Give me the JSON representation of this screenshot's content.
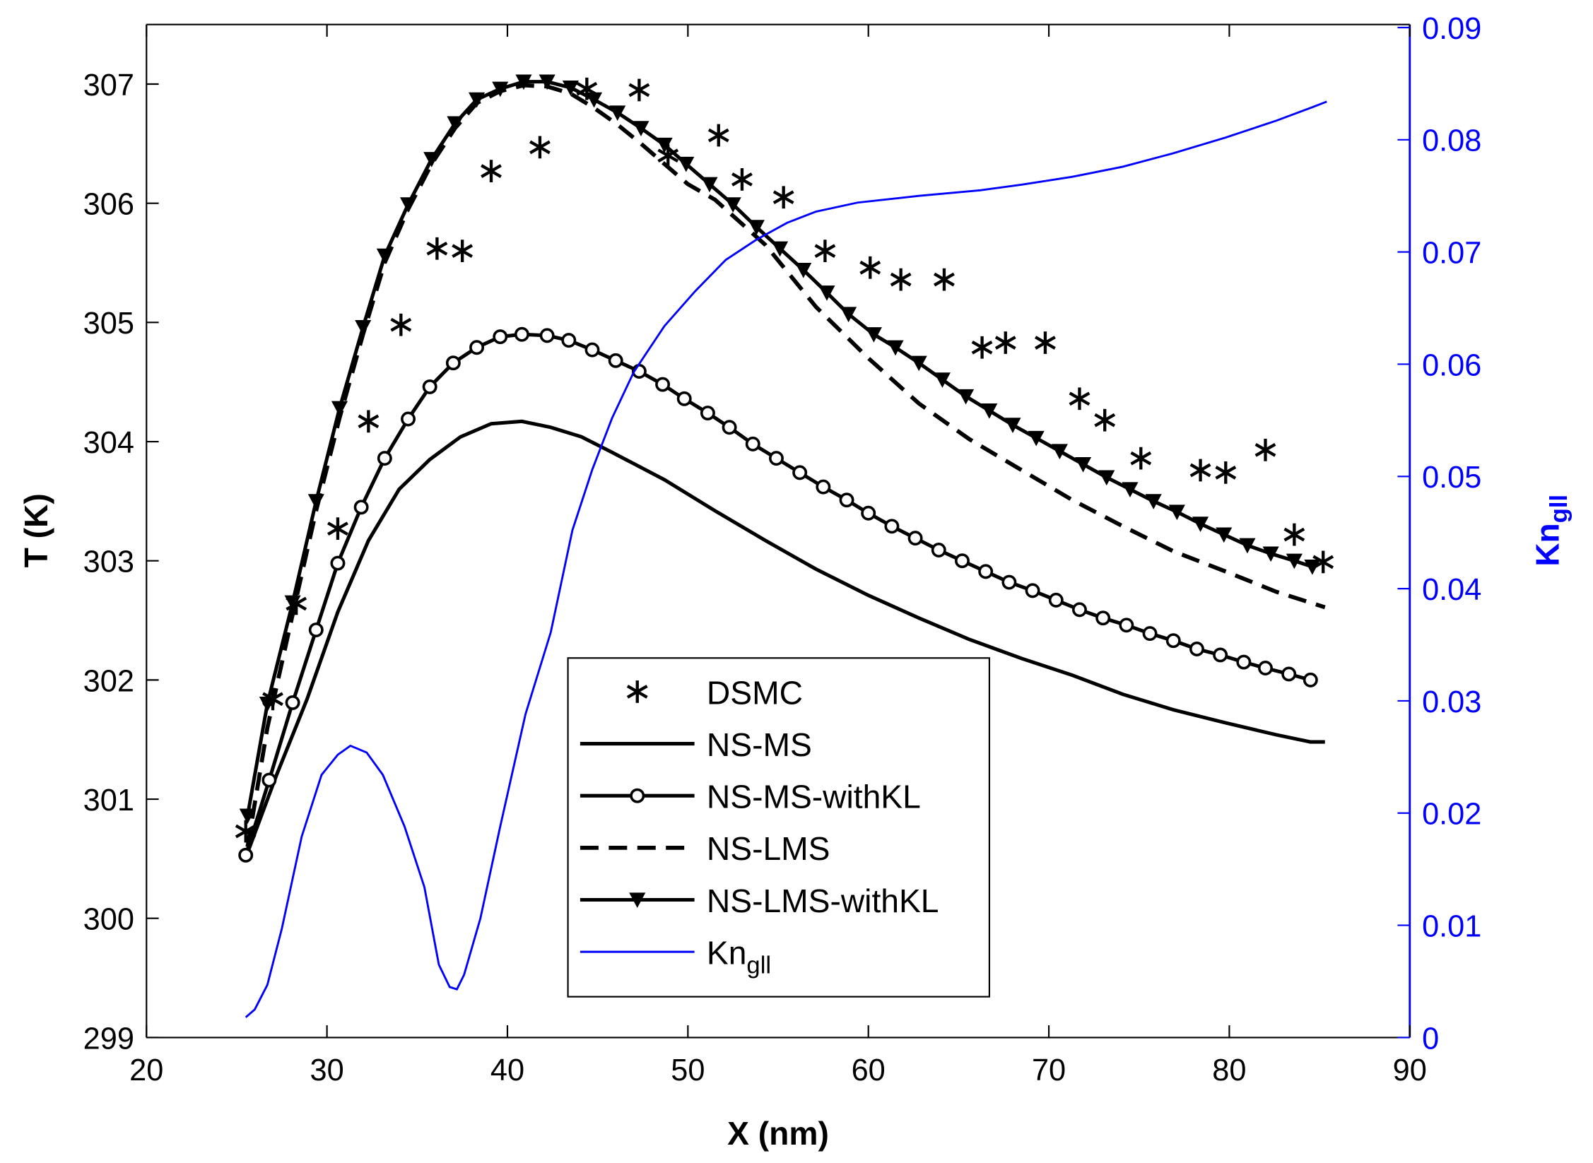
{
  "chart_data": {
    "type": "line",
    "title": "",
    "xlabel": "X (nm)",
    "ylabel": "T (K)",
    "y2label": {
      "base": "Kn",
      "sub": "gll"
    },
    "xlim": [
      20,
      90
    ],
    "ylim": [
      299,
      307.5
    ],
    "y2lim": [
      0,
      0.09
    ],
    "xticks": [
      20,
      30,
      40,
      50,
      60,
      70,
      80,
      90
    ],
    "yticks": [
      299,
      300,
      301,
      302,
      303,
      304,
      305,
      306,
      307
    ],
    "y2ticks": [
      "0",
      "0.01",
      "0.02",
      "0.03",
      "0.04",
      "0.05",
      "0.06",
      "0.07",
      "0.08",
      "0.09"
    ],
    "grid": false,
    "legend_position": "bottom-center",
    "colors": {
      "axis": "#000000",
      "kn": "#0000ff"
    },
    "series": [
      {
        "name": "DSMC",
        "style": "asterisk",
        "axis": "left",
        "x": [
          25.5,
          27.0,
          28.3,
          30.6,
          32.3,
          34.1,
          36.1,
          37.5,
          39.1,
          41.8,
          44.4,
          47.3,
          48.9,
          51.7,
          53.0,
          55.3,
          57.6,
          60.1,
          61.8,
          64.2,
          66.3,
          67.6,
          69.8,
          71.7,
          73.1,
          75.1,
          78.4,
          79.8,
          82.0,
          83.6,
          85.2
        ],
        "y": [
          300.73,
          301.84,
          302.64,
          303.27,
          304.17,
          304.98,
          305.62,
          305.6,
          306.27,
          306.47,
          306.96,
          306.95,
          306.4,
          306.57,
          306.2,
          306.05,
          305.6,
          305.46,
          305.36,
          305.36,
          304.79,
          304.83,
          304.83,
          304.36,
          304.18,
          303.86,
          303.76,
          303.74,
          303.93,
          303.22,
          302.99
        ]
      },
      {
        "name": "NS-MS",
        "style": "solid",
        "axis": "left",
        "x": [
          25.5,
          27.2,
          28.9,
          30.6,
          32.3,
          34.0,
          35.7,
          37.4,
          39.1,
          40.8,
          42.4,
          44.1,
          45.8,
          48.7,
          51.5,
          54.3,
          57.1,
          60.0,
          62.8,
          65.6,
          68.5,
          71.3,
          74.1,
          76.9,
          79.8,
          82.6,
          84.5,
          85.3
        ],
        "y": [
          300.51,
          301.2,
          301.84,
          302.57,
          303.17,
          303.6,
          303.85,
          304.04,
          304.15,
          304.17,
          304.12,
          304.04,
          303.91,
          303.68,
          303.42,
          303.17,
          302.93,
          302.71,
          302.52,
          302.34,
          302.18,
          302.04,
          301.88,
          301.75,
          301.64,
          301.54,
          301.48,
          301.48
        ]
      },
      {
        "name": "NS-MS-withKL",
        "style": "solid-circle",
        "axis": "left",
        "x": [
          25.5,
          26.8,
          28.1,
          29.4,
          30.6,
          31.9,
          33.2,
          34.5,
          35.7,
          37.0,
          38.3,
          39.6,
          40.8,
          42.2,
          43.4,
          44.7,
          46.0,
          47.3,
          48.6,
          49.8,
          51.1,
          52.3,
          53.6,
          54.9,
          56.2,
          57.5,
          58.8,
          60.0,
          61.3,
          62.6,
          63.9,
          65.2,
          66.5,
          67.8,
          69.1,
          70.4,
          71.7,
          73.0,
          74.3,
          75.6,
          76.9,
          78.2,
          79.5,
          80.8,
          82.0,
          83.3,
          84.5
        ],
        "y": [
          300.53,
          301.16,
          301.81,
          302.42,
          302.98,
          303.45,
          303.86,
          304.19,
          304.46,
          304.66,
          304.79,
          304.88,
          304.9,
          304.89,
          304.85,
          304.77,
          304.68,
          304.59,
          304.48,
          304.36,
          304.24,
          304.12,
          303.98,
          303.86,
          303.74,
          303.62,
          303.51,
          303.4,
          303.29,
          303.19,
          303.09,
          303.0,
          302.91,
          302.82,
          302.75,
          302.67,
          302.59,
          302.52,
          302.46,
          302.39,
          302.33,
          302.26,
          302.21,
          302.15,
          302.1,
          302.05,
          302.0
        ]
      },
      {
        "name": "NS-LMS",
        "style": "dashed",
        "axis": "left",
        "x": [
          25.6,
          26.7,
          28.1,
          29.4,
          30.7,
          32.0,
          33.2,
          34.5,
          35.8,
          37.1,
          38.3,
          39.6,
          40.9,
          42.2,
          43.5,
          44.8,
          46.1,
          47.4,
          48.7,
          50.0,
          51.5,
          54.3,
          57.1,
          60.0,
          62.8,
          65.6,
          68.5,
          71.3,
          74.1,
          76.9,
          79.8,
          82.6,
          85.3
        ],
        "y": [
          300.6,
          301.6,
          302.55,
          303.42,
          304.2,
          304.9,
          305.5,
          305.95,
          306.33,
          306.63,
          306.84,
          306.94,
          306.99,
          306.98,
          306.92,
          306.8,
          306.66,
          306.5,
          306.33,
          306.16,
          306.03,
          305.65,
          305.13,
          304.7,
          304.32,
          304.02,
          303.76,
          303.51,
          303.29,
          303.08,
          302.91,
          302.74,
          302.61
        ]
      },
      {
        "name": "NS-LMS-withKL",
        "style": "solid-triangle",
        "axis": "left",
        "x": [
          25.6,
          26.7,
          28.1,
          29.4,
          30.7,
          32.0,
          33.2,
          34.5,
          35.8,
          37.1,
          38.3,
          39.6,
          40.9,
          42.2,
          43.5,
          44.8,
          46.1,
          47.4,
          48.7,
          49.9,
          51.2,
          52.5,
          53.8,
          55.1,
          56.4,
          57.7,
          58.9,
          60.3,
          61.5,
          62.8,
          64.1,
          65.4,
          66.7,
          68.0,
          69.3,
          70.6,
          71.9,
          73.2,
          74.5,
          75.8,
          77.1,
          78.4,
          79.7,
          81.0,
          82.3,
          83.6,
          84.6
        ],
        "y": [
          300.86,
          301.8,
          302.65,
          303.5,
          304.28,
          304.96,
          305.56,
          305.99,
          306.37,
          306.67,
          306.87,
          306.96,
          307.02,
          307.02,
          306.97,
          306.87,
          306.76,
          306.63,
          306.49,
          306.33,
          306.16,
          305.99,
          305.8,
          305.62,
          305.44,
          305.25,
          305.07,
          304.9,
          304.79,
          304.66,
          304.52,
          304.38,
          304.26,
          304.14,
          304.03,
          303.92,
          303.81,
          303.7,
          303.6,
          303.5,
          303.41,
          303.31,
          303.22,
          303.13,
          303.06,
          303.0,
          302.95
        ]
      },
      {
        "name": "Kn_gll",
        "label_base": "Kn",
        "label_sub": "gll",
        "style": "thin-blue",
        "axis": "right",
        "x": [
          25.5,
          26.0,
          26.7,
          27.5,
          28.6,
          29.7,
          30.6,
          31.3,
          32.2,
          33.1,
          34.3,
          35.4,
          36.2,
          36.8,
          37.2,
          37.6,
          38.5,
          39.6,
          41.0,
          42.4,
          43.6,
          44.7,
          45.8,
          47.0,
          48.7,
          50.4,
          52.1,
          53.8,
          55.5,
          57.1,
          59.4,
          62.8,
          66.2,
          68.5,
          71.3,
          74.1,
          76.9,
          79.8,
          82.6,
          84.6,
          85.4
        ],
        "y": [
          0.0018,
          0.0025,
          0.0047,
          0.0097,
          0.0179,
          0.0234,
          0.0252,
          0.026,
          0.0254,
          0.0234,
          0.0188,
          0.0134,
          0.0065,
          0.0045,
          0.0043,
          0.0056,
          0.0106,
          0.0188,
          0.0288,
          0.0361,
          0.0452,
          0.0506,
          0.0552,
          0.0593,
          0.0634,
          0.0665,
          0.0693,
          0.0711,
          0.0726,
          0.0736,
          0.0744,
          0.075,
          0.0755,
          0.076,
          0.0767,
          0.0776,
          0.0788,
          0.0802,
          0.0817,
          0.0829,
          0.0834
        ]
      }
    ]
  }
}
